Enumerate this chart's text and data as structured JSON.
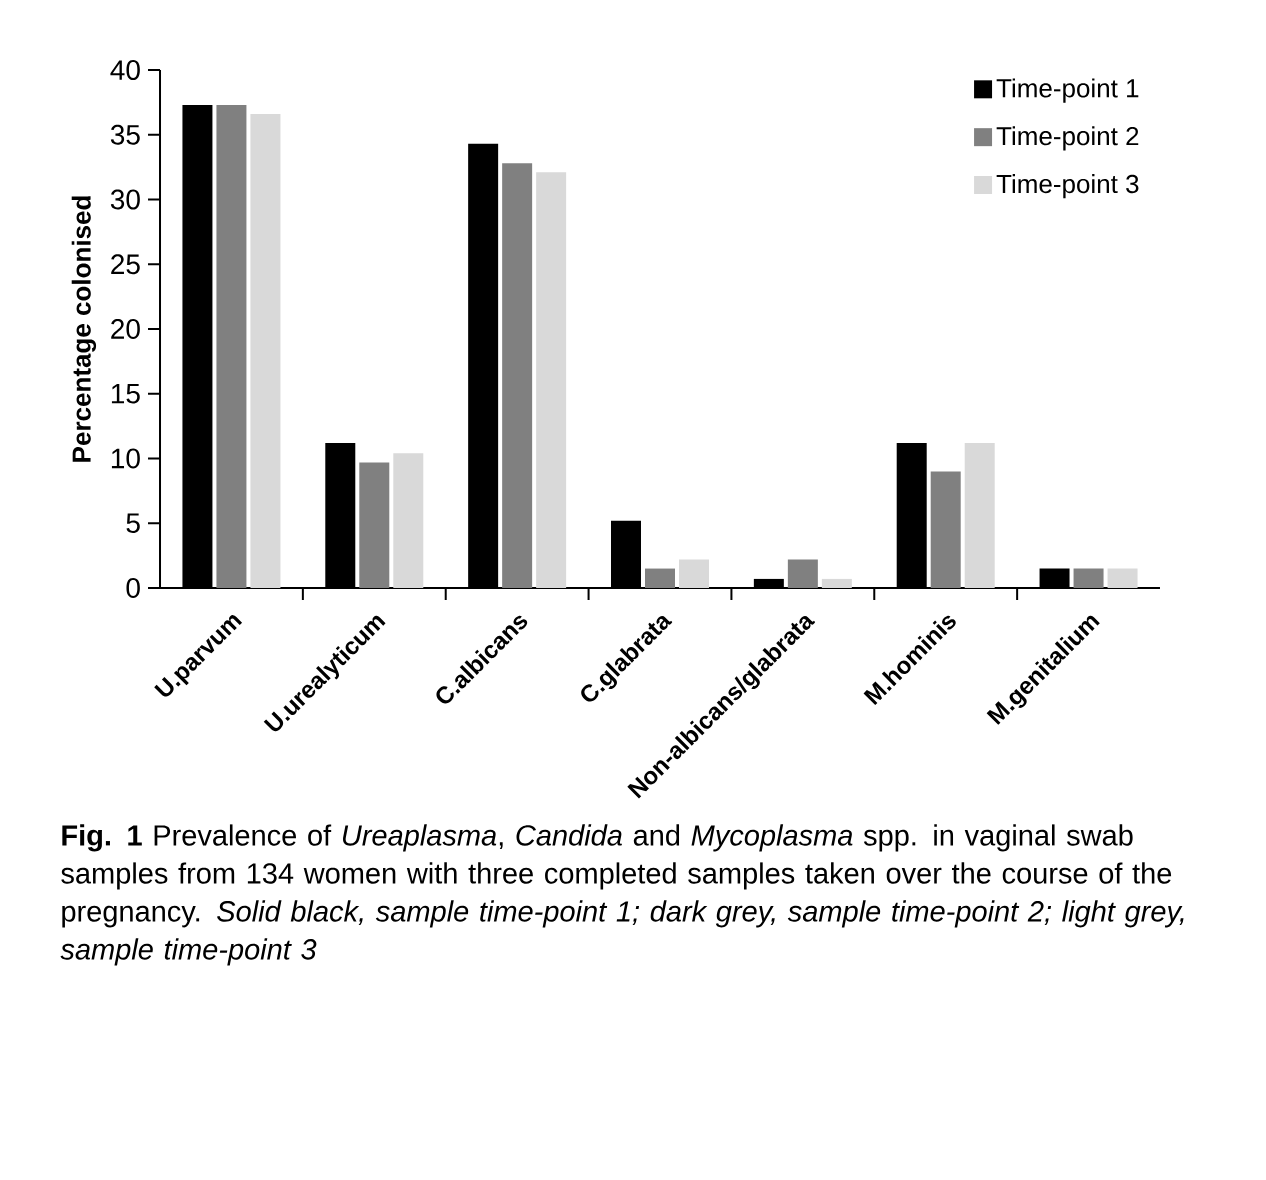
{
  "chart_data": {
    "type": "bar",
    "ylabel": "Percentage colonised",
    "categories": [
      "U.parvum",
      "U.urealyticum",
      "C.albicans",
      "C.glabrata",
      "Non-albicans/glabrata",
      "M.hominis",
      "M.genitalium"
    ],
    "series": [
      {
        "name": "Time-point 1",
        "color": "#000000",
        "values": [
          37.3,
          11.2,
          34.3,
          5.2,
          0.7,
          11.2,
          1.5
        ]
      },
      {
        "name": "Time-point 2",
        "color": "#808080",
        "values": [
          37.3,
          9.7,
          32.8,
          1.5,
          2.2,
          9.0,
          1.5
        ]
      },
      {
        "name": "Time-point 3",
        "color": "#d9d9d9",
        "values": [
          36.6,
          10.4,
          32.1,
          2.2,
          0.7,
          11.2,
          1.5
        ]
      }
    ],
    "ylim": [
      0,
      40
    ],
    "yticks": [
      0,
      5,
      10,
      15,
      20,
      25,
      30,
      35,
      40
    ],
    "legend": "top right",
    "annotations": [
      "**Fig. 1** Prevalence of *Ureaplasma*, *Candida* and *Mycoplasma* spp. in vaginal swab samples from 134 women with three completed samples taken over the course of the pregnancy. *Solid black, sample time-point 1; dark grey, sample time-point 2; light grey, sample time-point 3*"
    ]
  }
}
